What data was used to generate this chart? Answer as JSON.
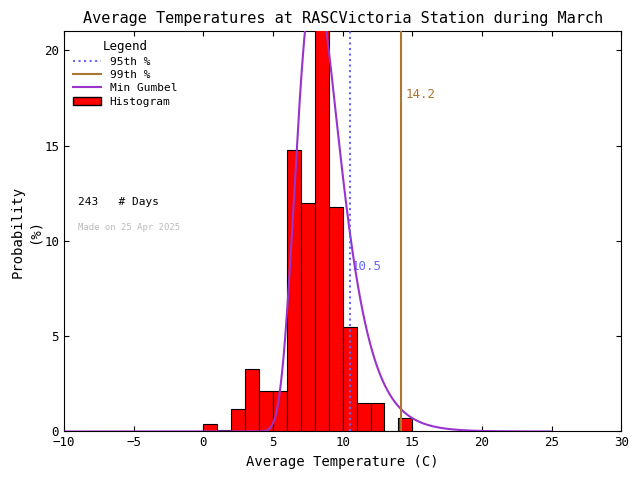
{
  "title": "Average Temperatures at RASCVictoria Station during March",
  "xlabel": "Average Temperature (C)",
  "ylabel": "Probability\n(%)",
  "xlim": [
    -10,
    30
  ],
  "ylim": [
    0,
    21
  ],
  "yticks": [
    0,
    5,
    10,
    15,
    20
  ],
  "xticks": [
    -10,
    -5,
    0,
    5,
    10,
    15,
    20,
    25,
    30
  ],
  "bar_edges": [
    0,
    1,
    2,
    3,
    4,
    5,
    6,
    7,
    8,
    9,
    10,
    11,
    12,
    13,
    14,
    15
  ],
  "bar_heights": [
    0.4,
    0.1,
    1.2,
    3.3,
    2.1,
    2.1,
    14.8,
    12.0,
    21.2,
    11.8,
    5.5,
    1.5,
    1.5,
    0.0,
    0.7
  ],
  "bar_color": "#ff0000",
  "bar_edgecolor": "#000000",
  "gumbel_color": "#9933cc",
  "p95_value": 10.5,
  "p95_color": "#6666ff",
  "p99_value": 14.2,
  "p99_color": "#aa7733",
  "n_days": 243,
  "watermark": "Made on 25 Apr 2025",
  "watermark_color": "#bbbbbb",
  "legend_title": "Legend",
  "bg_color": "#ffffff",
  "gumbel_mu": 8.0,
  "gumbel_beta": 1.55
}
